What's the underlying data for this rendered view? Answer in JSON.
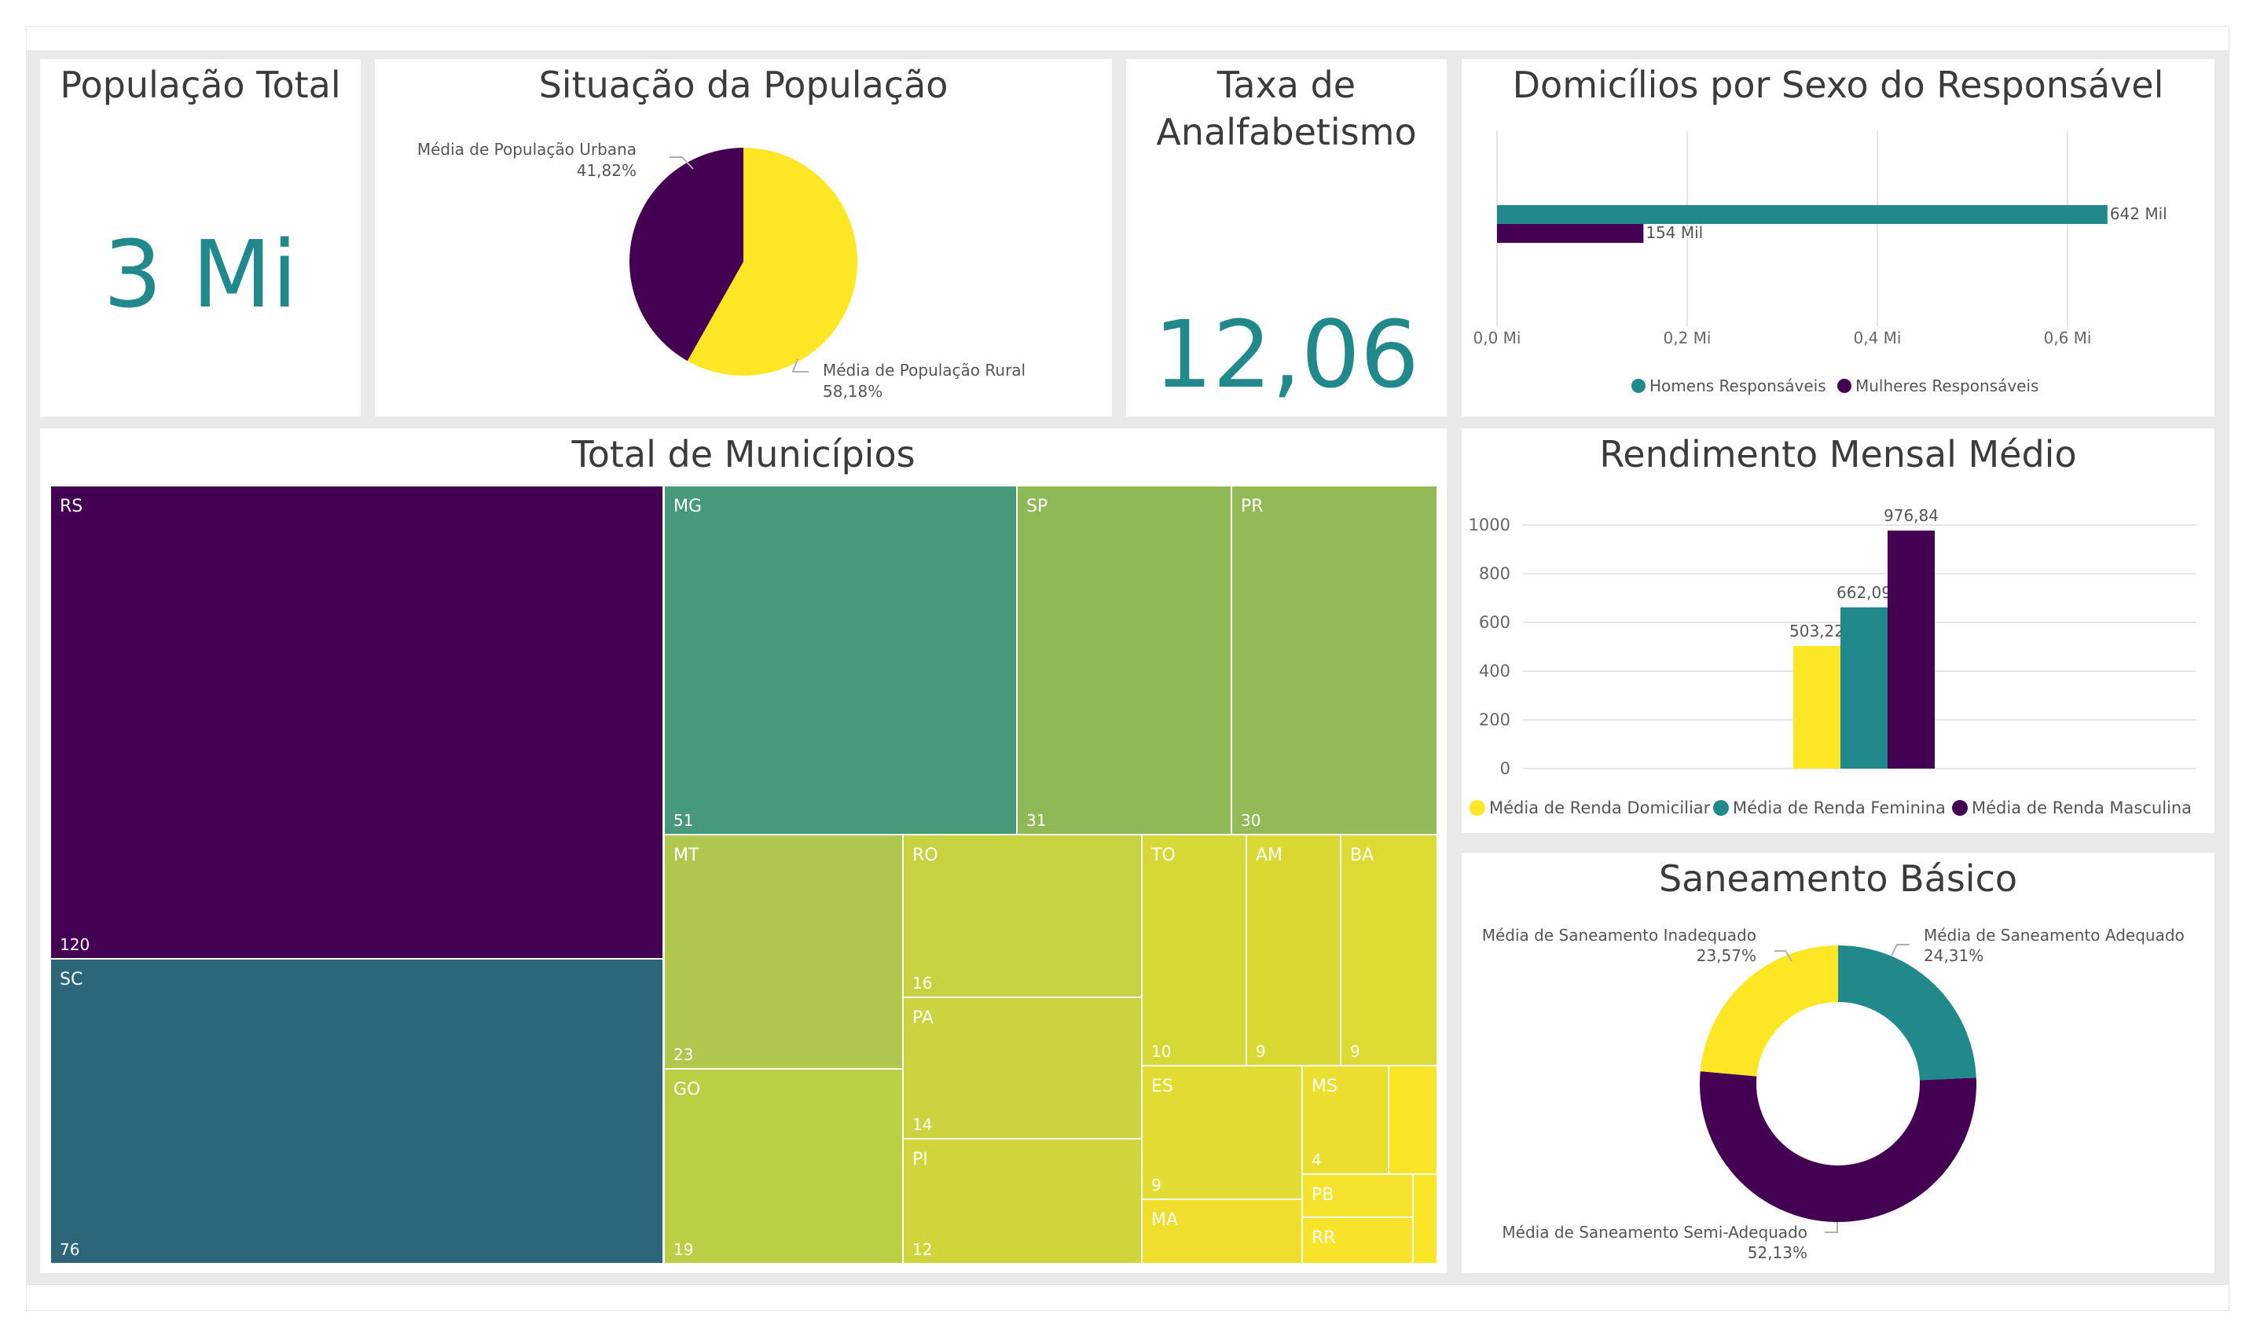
{
  "colors": {
    "teal": "#21898b",
    "purple": "#440154",
    "yellow": "#fde725",
    "gridline": "#e5e5e5"
  },
  "kpi_population": {
    "title": "População Total",
    "value": "3 Mi"
  },
  "kpi_illiteracy": {
    "title_line1": "Taxa de",
    "title_line2": "Analfabetismo",
    "value": "12,06"
  },
  "pie_situation": {
    "title": "Situação da População"
  },
  "bar_households": {
    "title": "Domicílios por Sexo do Responsável"
  },
  "treemap_municipalities": {
    "title": "Total de Municípios"
  },
  "column_income": {
    "title": "Rendimento Mensal Médio"
  },
  "donut_sanitation": {
    "title": "Saneamento Básico"
  },
  "chart_data": [
    {
      "type": "pie",
      "title": "Situação da População",
      "slices": [
        {
          "label": "Média de População Urbana",
          "value": 41.82,
          "display": "41,82%",
          "color": "#440154"
        },
        {
          "label": "Média de População Rural",
          "value": 58.18,
          "display": "58,18%",
          "color": "#fde725"
        }
      ]
    },
    {
      "type": "bar",
      "title": "Domicílios por Sexo do Responsável",
      "orientation": "horizontal",
      "xlim": [
        0,
        0.66
      ],
      "x_ticks": [
        0,
        0.2,
        0.4,
        0.6
      ],
      "x_tick_labels": [
        "0,0 Mi",
        "0,2 Mi",
        "0,4 Mi",
        "0,6 Mi"
      ],
      "legend_position": "bottom-center",
      "series": [
        {
          "name": "Homens Responsáveis",
          "value": 0.642,
          "label": "642 Mil",
          "color": "#21898b"
        },
        {
          "name": "Mulheres Responsáveis",
          "value": 0.154,
          "label": "154 Mil",
          "color": "#440154"
        }
      ]
    },
    {
      "type": "treemap",
      "title": "Total de Municípios",
      "items": [
        {
          "label": "RS",
          "value": 120,
          "value_label": "120",
          "color": "#440154"
        },
        {
          "label": "SC",
          "value": 76,
          "value_label": "76",
          "color": "#2c667a"
        },
        {
          "label": "MG",
          "value": 51,
          "value_label": "51",
          "color": "#469a7a"
        },
        {
          "label": "SP",
          "value": 31,
          "value_label": "31",
          "color": "#8fb957"
        },
        {
          "label": "PR",
          "value": 30,
          "value_label": "30",
          "color": "#93ba56"
        },
        {
          "label": "MT",
          "value": 23,
          "value_label": "23",
          "color": "#afc74d"
        },
        {
          "label": "GO",
          "value": 19,
          "value_label": "19",
          "color": "#bcce44"
        },
        {
          "label": "RO",
          "value": 16,
          "value_label": "16",
          "color": "#c6d240"
        },
        {
          "label": "PA",
          "value": 14,
          "value_label": "14",
          "color": "#cbd43e"
        },
        {
          "label": "PI",
          "value": 12,
          "value_label": "12",
          "color": "#d0d63a"
        },
        {
          "label": "TO",
          "value": 10,
          "value_label": "10",
          "color": "#d6d836"
        },
        {
          "label": "AM",
          "value": 9,
          "value_label": "9",
          "color": "#d9d934"
        },
        {
          "label": "BA",
          "value": 9,
          "value_label": "9",
          "color": "#dcda33"
        },
        {
          "label": "ES",
          "value": 9,
          "value_label": "9",
          "color": "#e2db31"
        },
        {
          "label": "MS",
          "value": 4,
          "value_label": "4",
          "color": "#ebde2e"
        },
        {
          "label": "MA",
          "value": null,
          "value_label": "",
          "color": "#efdf2c"
        },
        {
          "label": "PB",
          "value": null,
          "value_label": "",
          "color": "#f5e22a"
        },
        {
          "label": "RR",
          "value": null,
          "value_label": "",
          "color": "#f7e329"
        },
        {
          "label": "",
          "value": null,
          "value_label": "",
          "color": "#f9e428"
        },
        {
          "label": "",
          "value": null,
          "value_label": "",
          "color": "#fbe527"
        }
      ]
    },
    {
      "type": "bar",
      "title": "Rendimento Mensal Médio",
      "orientation": "vertical",
      "ylim": [
        0,
        1000
      ],
      "y_ticks": [
        0,
        200,
        400,
        600,
        800,
        1000
      ],
      "y_tick_labels": [
        "0",
        "200",
        "400",
        "600",
        "800",
        "1000"
      ],
      "legend_position": "bottom",
      "series": [
        {
          "name": "Média de Renda Domiciliar",
          "value": 503.22,
          "label": "503,22",
          "color": "#fde725"
        },
        {
          "name": "Média de Renda Feminina",
          "value": 662.09,
          "label": "662,09",
          "color": "#21898b"
        },
        {
          "name": "Média de Renda Masculina",
          "value": 976.84,
          "label": "976,84",
          "color": "#440154"
        }
      ]
    },
    {
      "type": "donut",
      "title": "Saneamento Básico",
      "slices": [
        {
          "label": "Média de Saneamento Adequado",
          "value": 24.31,
          "display": "24,31%",
          "color": "#21898b"
        },
        {
          "label": "Média de Saneamento Semi-Adequado",
          "value": 52.13,
          "display": "52,13%",
          "color": "#440154"
        },
        {
          "label": "Média de Saneamento Inadequado",
          "value": 23.57,
          "display": "23,57%",
          "color": "#fde725"
        }
      ]
    }
  ]
}
